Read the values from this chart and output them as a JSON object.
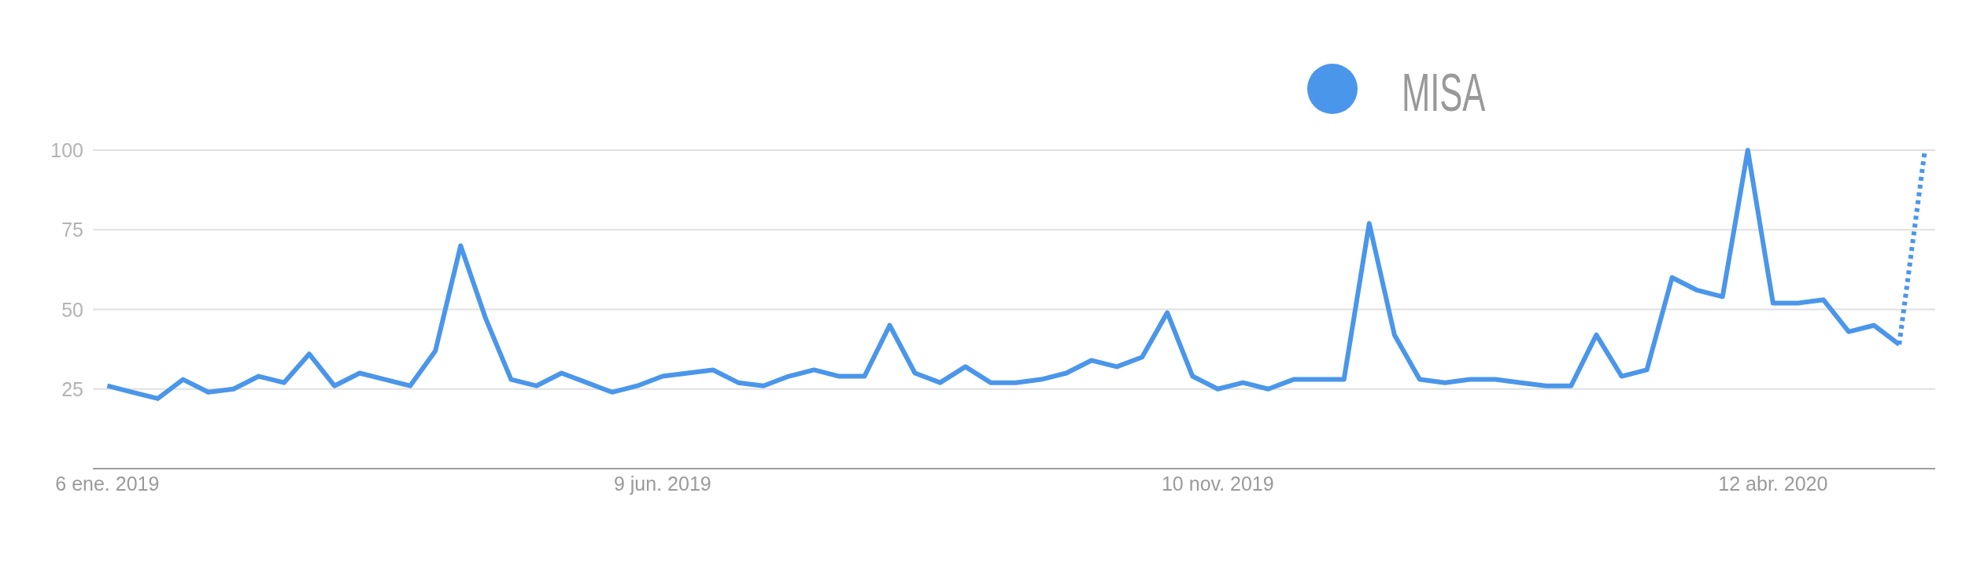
{
  "chart_data": {
    "type": "line",
    "x": [
      "2019-01-06",
      "2019-01-13",
      "2019-01-20",
      "2019-01-27",
      "2019-02-03",
      "2019-02-10",
      "2019-02-17",
      "2019-02-24",
      "2019-03-03",
      "2019-03-10",
      "2019-03-17",
      "2019-03-24",
      "2019-03-31",
      "2019-04-07",
      "2019-04-14",
      "2019-04-21",
      "2019-04-28",
      "2019-05-05",
      "2019-05-12",
      "2019-05-19",
      "2019-05-26",
      "2019-06-02",
      "2019-06-09",
      "2019-06-16",
      "2019-06-23",
      "2019-06-30",
      "2019-07-07",
      "2019-07-14",
      "2019-07-21",
      "2019-07-28",
      "2019-08-04",
      "2019-08-11",
      "2019-08-18",
      "2019-08-25",
      "2019-09-01",
      "2019-09-08",
      "2019-09-15",
      "2019-09-22",
      "2019-09-29",
      "2019-10-06",
      "2019-10-13",
      "2019-10-20",
      "2019-10-27",
      "2019-11-03",
      "2019-11-10",
      "2019-11-17",
      "2019-11-24",
      "2019-12-01",
      "2019-12-08",
      "2019-12-15",
      "2019-12-22",
      "2019-12-29",
      "2020-01-05",
      "2020-01-12",
      "2020-01-19",
      "2020-01-26",
      "2020-02-02",
      "2020-02-09",
      "2020-02-16",
      "2020-02-23",
      "2020-03-01",
      "2020-03-08",
      "2020-03-15",
      "2020-03-22",
      "2020-03-29",
      "2020-04-05",
      "2020-04-12",
      "2020-04-19",
      "2020-04-26",
      "2020-05-03",
      "2020-05-10",
      "2020-05-17"
    ],
    "series": [
      {
        "name": "MISA",
        "color": "#4a96ea",
        "values": [
          26,
          24,
          22,
          28,
          24,
          25,
          29,
          27,
          36,
          26,
          30,
          28,
          26,
          37,
          70,
          47,
          28,
          26,
          30,
          27,
          24,
          26,
          29,
          30,
          31,
          27,
          26,
          29,
          31,
          29,
          29,
          45,
          30,
          27,
          32,
          27,
          27,
          28,
          30,
          34,
          32,
          35,
          49,
          29,
          25,
          27,
          25,
          28,
          28,
          28,
          77,
          42,
          28,
          27,
          28,
          28,
          27,
          26,
          26,
          42,
          29,
          31,
          60,
          56,
          54,
          100,
          52,
          52,
          53,
          43,
          45,
          39
        ]
      },
      {
        "type": "line",
        "color": "#4a96ea",
        "line_style": "dotted",
        "x": [
          "2020-05-17",
          "2020-05-24"
        ],
        "values": [
          39,
          99
        ]
      }
    ],
    "xlim": [
      "2019-01-02",
      "2020-05-27"
    ],
    "xticks": [
      {
        "value": "2019-01-06",
        "label": "6 ene. 2019"
      },
      {
        "value": "2019-06-09",
        "label": "9 jun. 2019"
      },
      {
        "value": "2019-11-10",
        "label": "10 nov. 2019"
      },
      {
        "value": "2020-04-12",
        "label": "12 abr. 2020"
      }
    ],
    "ylim": [
      0,
      100
    ],
    "yticks": [
      25,
      50,
      75,
      100
    ],
    "grid": "y",
    "legend": "top right",
    "line_style": "solid"
  }
}
